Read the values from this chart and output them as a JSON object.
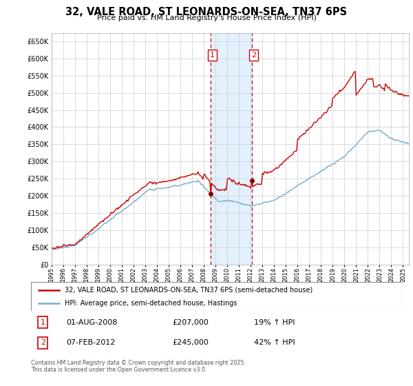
{
  "title": "32, VALE ROAD, ST LEONARDS-ON-SEA, TN37 6PS",
  "subtitle": "Price paid vs. HM Land Registry's House Price Index (HPI)",
  "ylabel_ticks": [
    "£0",
    "£50K",
    "£100K",
    "£150K",
    "£200K",
    "£250K",
    "£300K",
    "£350K",
    "£400K",
    "£450K",
    "£500K",
    "£550K",
    "£600K",
    "£650K"
  ],
  "ytick_values": [
    0,
    50000,
    100000,
    150000,
    200000,
    250000,
    300000,
    350000,
    400000,
    450000,
    500000,
    550000,
    600000,
    650000
  ],
  "ylim": [
    0,
    675000
  ],
  "sale1_year": 2008.58,
  "sale2_year": 2012.08,
  "sale1_price": 207000,
  "sale2_price": 245000,
  "sale1_date": "01-AUG-2008",
  "sale2_date": "07-FEB-2012",
  "sale1_pct": "19% ↑ HPI",
  "sale2_pct": "42% ↑ HPI",
  "legend_line1": "32, VALE ROAD, ST LEONARDS-ON-SEA, TN37 6PS (semi-detached house)",
  "legend_line2": "HPI: Average price, semi-detached house, Hastings",
  "footer": "Contains HM Land Registry data © Crown copyright and database right 2025.\nThis data is licensed under the Open Government Licence v3.0.",
  "property_color": "#cc0000",
  "hpi_color": "#7aaacc",
  "shade_color": "#ddeeff",
  "grid_color": "#cccccc",
  "sale_marker_color": "#880000",
  "annotation_color": "#cc0000",
  "x_start_year": 1995,
  "x_end_year": 2025
}
